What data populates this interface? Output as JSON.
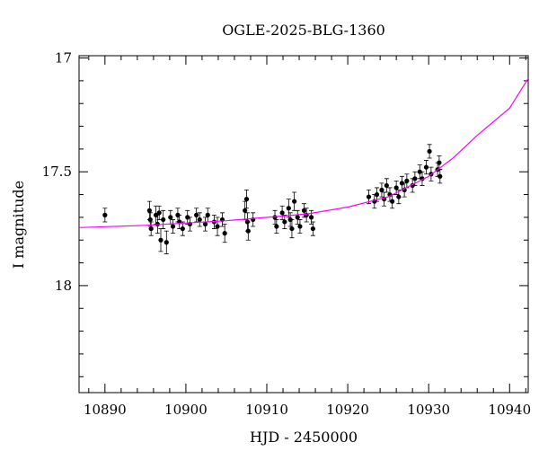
{
  "chart_data": {
    "type": "scatter",
    "title": "OGLE-2025-BLG-1360",
    "xlabel": "HJD - 2450000",
    "ylabel": "I magnitude",
    "xlim": [
      10886.8,
      10942.3
    ],
    "ylim": [
      16.99,
      18.47
    ],
    "y_inverted": true,
    "xticks": [
      10890,
      10900,
      10910,
      10920,
      10930,
      10940
    ],
    "yticks": [
      17,
      17.5,
      18
    ],
    "xminorticks": [
      10888,
      10892,
      10894,
      10896,
      10898,
      10902,
      10904,
      10906,
      10908,
      10912,
      10914,
      10916,
      10918,
      10922,
      10924,
      10926,
      10928,
      10932,
      10934,
      10936,
      10938,
      10942
    ],
    "yminorticks": [
      17.1,
      17.2,
      17.3,
      17.4,
      17.6,
      17.7,
      17.8,
      17.9,
      18.1,
      18.2,
      18.3,
      18.4
    ],
    "series": [
      {
        "color": "#000000",
        "x": [
          10890.0,
          10895.5,
          10895.6,
          10895.7,
          10896.3,
          10896.5,
          10896.7,
          10896.9,
          10897.2,
          10897.6,
          10898.1,
          10898.4,
          10899.0,
          10899.2,
          10899.6,
          10900.2,
          10900.5,
          10901.3,
          10901.7,
          10902.4,
          10902.7,
          10903.5,
          10903.9,
          10904.5,
          10904.8,
          10907.3,
          10907.5,
          10907.6,
          10907.7,
          10908.3,
          10911.0,
          10911.2,
          10911.9,
          10912.2,
          10912.7,
          10912.9,
          10913.1,
          10913.4,
          10913.8,
          10914.1,
          10914.6,
          10914.9,
          10915.5,
          10915.7,
          10922.6,
          10923.3,
          10923.6,
          10924.2,
          10924.5,
          10924.8,
          10925.2,
          10925.5,
          10926.0,
          10926.3,
          10926.7,
          10927.0,
          10927.3,
          10928.0,
          10928.3,
          10928.9,
          10929.2,
          10929.7,
          10930.1,
          10930.3,
          10931.1,
          10931.3,
          10931.4
        ],
        "values": [
          17.69,
          17.67,
          17.71,
          17.75,
          17.69,
          17.73,
          17.68,
          17.8,
          17.71,
          17.81,
          17.7,
          17.74,
          17.69,
          17.72,
          17.75,
          17.7,
          17.73,
          17.69,
          17.71,
          17.73,
          17.69,
          17.72,
          17.74,
          17.71,
          17.77,
          17.67,
          17.62,
          17.72,
          17.76,
          17.71,
          17.7,
          17.74,
          17.68,
          17.72,
          17.66,
          17.71,
          17.75,
          17.63,
          17.7,
          17.74,
          17.67,
          17.69,
          17.7,
          17.75,
          17.61,
          17.63,
          17.6,
          17.58,
          17.62,
          17.56,
          17.6,
          17.63,
          17.57,
          17.61,
          17.55,
          17.58,
          17.54,
          17.56,
          17.53,
          17.5,
          17.53,
          17.48,
          17.41,
          17.51,
          17.49,
          17.46,
          17.52
        ],
        "errors": [
          0.03,
          0.04,
          0.03,
          0.03,
          0.04,
          0.04,
          0.03,
          0.05,
          0.04,
          0.05,
          0.03,
          0.03,
          0.03,
          0.03,
          0.03,
          0.03,
          0.03,
          0.03,
          0.03,
          0.03,
          0.03,
          0.03,
          0.04,
          0.03,
          0.04,
          0.04,
          0.04,
          0.04,
          0.04,
          0.03,
          0.03,
          0.03,
          0.03,
          0.03,
          0.04,
          0.03,
          0.04,
          0.04,
          0.03,
          0.03,
          0.03,
          0.03,
          0.03,
          0.03,
          0.03,
          0.03,
          0.03,
          0.03,
          0.03,
          0.03,
          0.03,
          0.03,
          0.03,
          0.03,
          0.03,
          0.03,
          0.03,
          0.03,
          0.03,
          0.03,
          0.03,
          0.03,
          0.03,
          0.03,
          0.03,
          0.03,
          0.03
        ]
      },
      {
        "type": "line",
        "color": "#ff00ff",
        "x": [
          10886.8,
          10895,
          10905,
          10915,
          10920,
          10925,
          10930,
          10933,
          10936,
          10938,
          10940,
          10942.3
        ],
        "values": [
          17.745,
          17.735,
          17.715,
          17.685,
          17.655,
          17.61,
          17.52,
          17.44,
          17.34,
          17.28,
          17.22,
          17.09
        ]
      }
    ]
  }
}
